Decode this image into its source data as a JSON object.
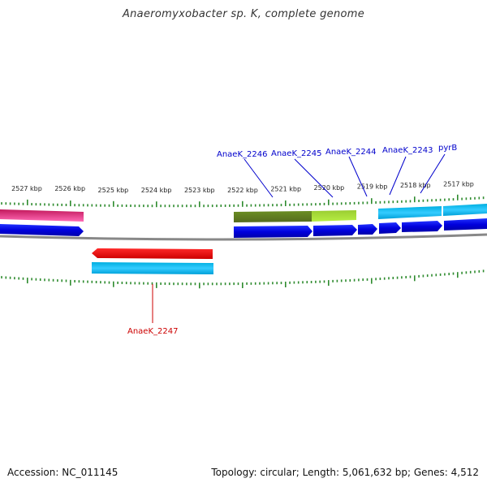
{
  "title": "Anaeromyxobacter sp. K, complete genome",
  "footer": {
    "accession": "Accession: NC_011145",
    "summary": "Topology: circular; Length: 5,061,632 bp; Genes: 4,512"
  },
  "colors": {
    "tick": "#2e8b2e",
    "label_blue": "#0000cc",
    "label_red": "#cc0000",
    "backbone": "#888888"
  },
  "kbp_ticks": [
    {
      "label": "2527 kbp",
      "kbp": 2527
    },
    {
      "label": "2526 kbp",
      "kbp": 2526
    },
    {
      "label": "2525 kbp",
      "kbp": 2525
    },
    {
      "label": "2524 kbp",
      "kbp": 2524
    },
    {
      "label": "2523 kbp",
      "kbp": 2523
    },
    {
      "label": "2522 kbp",
      "kbp": 2522
    },
    {
      "label": "2521 kbp",
      "kbp": 2521
    },
    {
      "label": "2520 kbp",
      "kbp": 2520
    },
    {
      "label": "2519 kbp",
      "kbp": 2519
    },
    {
      "label": "2518 kbp",
      "kbp": 2518
    },
    {
      "label": "2517 kbp",
      "kbp": 2517
    }
  ],
  "gene_labels": [
    {
      "text": "AnaeK_2246",
      "strand": "top"
    },
    {
      "text": "AnaeK_2245",
      "strand": "top"
    },
    {
      "text": "AnaeK_2244",
      "strand": "top"
    },
    {
      "text": "AnaeK_2243",
      "strand": "top"
    },
    {
      "text": "pyrB",
      "strand": "top"
    },
    {
      "text": "AnaeK_2247",
      "strand": "bottom"
    }
  ]
}
